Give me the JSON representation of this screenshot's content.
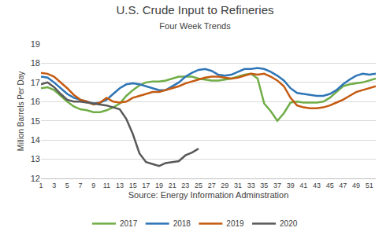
{
  "chart_data": {
    "type": "line",
    "title": "U.S. Crude Input to Refineries",
    "subtitle": "Four Week Trends",
    "y_label": "Million Barrels Per Day",
    "x_label": "Source: Energy Information Adminstration",
    "x": [
      1,
      2,
      3,
      4,
      5,
      6,
      7,
      8,
      9,
      10,
      11,
      12,
      13,
      14,
      15,
      16,
      17,
      18,
      19,
      20,
      21,
      22,
      23,
      24,
      25,
      26,
      27,
      28,
      29,
      30,
      31,
      32,
      33,
      34,
      35,
      36,
      37,
      38,
      39,
      40,
      41,
      42,
      43,
      44,
      45,
      46,
      47,
      48,
      49,
      50,
      51,
      52
    ],
    "series": [
      {
        "name": "2017",
        "color": "#70ad47",
        "values": [
          16.7,
          16.75,
          16.6,
          16.3,
          16.0,
          15.75,
          15.6,
          15.55,
          15.45,
          15.45,
          15.55,
          15.7,
          15.9,
          16.3,
          16.6,
          16.85,
          17.0,
          17.05,
          17.05,
          17.1,
          17.2,
          17.3,
          17.3,
          17.3,
          17.2,
          17.15,
          17.1,
          17.1,
          17.15,
          17.2,
          17.3,
          17.4,
          17.45,
          17.2,
          15.9,
          15.5,
          15.0,
          15.4,
          15.95,
          16.0,
          15.95,
          15.95,
          15.95,
          16.0,
          16.2,
          16.5,
          16.8,
          16.9,
          16.95,
          17.0,
          17.1,
          17.2
        ]
      },
      {
        "name": "2018",
        "color": "#2e75b6",
        "values": [
          17.3,
          17.25,
          17.0,
          16.7,
          16.4,
          16.2,
          16.1,
          16.0,
          15.9,
          15.95,
          16.1,
          16.4,
          16.7,
          16.9,
          16.95,
          16.9,
          16.8,
          16.7,
          16.6,
          16.6,
          16.8,
          17.0,
          17.3,
          17.5,
          17.65,
          17.7,
          17.6,
          17.4,
          17.35,
          17.4,
          17.55,
          17.7,
          17.7,
          17.75,
          17.7,
          17.55,
          17.35,
          17.1,
          16.7,
          16.45,
          16.4,
          16.35,
          16.3,
          16.3,
          16.4,
          16.6,
          16.9,
          17.15,
          17.35,
          17.45,
          17.4,
          17.45
        ]
      },
      {
        "name": "2019",
        "color": "#c55a11",
        "values": [
          17.5,
          17.45,
          17.3,
          17.0,
          16.7,
          16.35,
          16.1,
          16.0,
          15.85,
          15.95,
          16.2,
          16.0,
          15.95,
          16.0,
          16.2,
          16.3,
          16.4,
          16.5,
          16.5,
          16.6,
          16.7,
          16.8,
          16.95,
          17.05,
          17.15,
          17.25,
          17.3,
          17.3,
          17.25,
          17.2,
          17.25,
          17.35,
          17.45,
          17.4,
          17.45,
          17.3,
          17.1,
          16.8,
          16.2,
          15.8,
          15.7,
          15.65,
          15.65,
          15.7,
          15.8,
          15.95,
          16.1,
          16.3,
          16.5,
          16.6,
          16.7,
          16.8
        ]
      },
      {
        "name": "2020",
        "color": "#595959",
        "values": [
          16.9,
          17.0,
          16.75,
          16.4,
          16.1,
          16.0,
          16.0,
          15.95,
          15.9,
          15.85,
          15.8,
          15.7,
          15.6,
          15.1,
          14.3,
          13.3,
          12.85,
          12.75,
          12.65,
          12.8,
          12.85,
          12.9,
          13.2,
          13.35,
          13.55,
          null,
          null,
          null,
          null,
          null,
          null,
          null,
          null,
          null,
          null,
          null,
          null,
          null,
          null,
          null,
          null,
          null,
          null,
          null,
          null,
          null,
          null,
          null,
          null,
          null,
          null,
          null
        ]
      }
    ],
    "xlim": [
      1,
      52
    ],
    "xticks": [
      1,
      3,
      5,
      7,
      9,
      11,
      13,
      15,
      17,
      19,
      21,
      23,
      25,
      27,
      29,
      31,
      33,
      35,
      37,
      39,
      41,
      43,
      45,
      47,
      49,
      51
    ],
    "ylim": [
      12,
      19
    ],
    "yticks": [
      12,
      13,
      14,
      15,
      16,
      17,
      18,
      19
    ],
    "grid": true,
    "legend": "bottom"
  }
}
